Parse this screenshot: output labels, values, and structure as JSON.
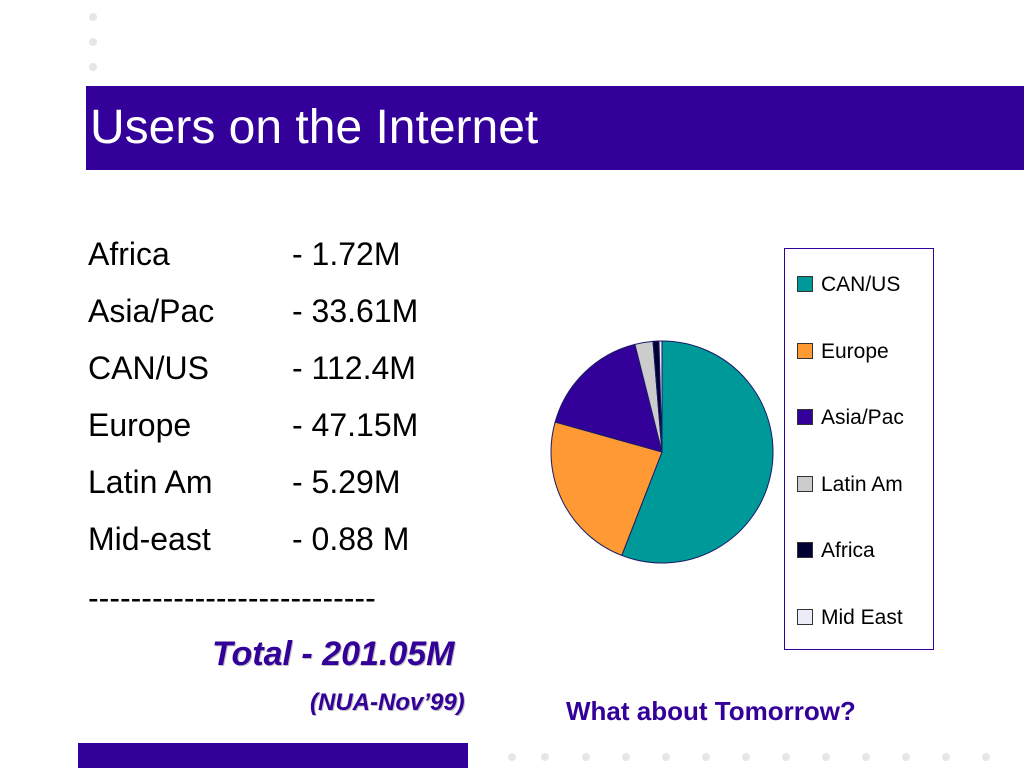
{
  "slide": {
    "title": "Users on the Internet",
    "rows": [
      {
        "name": "Africa",
        "value": "- 1.72M"
      },
      {
        "name": "Asia/Pac",
        "value": "- 33.61M"
      },
      {
        "name": "CAN/US",
        "value": "- 112.4M"
      },
      {
        "name": "Europe",
        "value": "- 47.15M"
      },
      {
        "name": "Latin Am",
        "value": "- 5.29M"
      },
      {
        "name": "Mid-east",
        "value": "- 0.88 M"
      }
    ],
    "divider": "---------------------------",
    "total": "Total - 201.05M",
    "source": "(NUA-Nov’99)",
    "question": "What about Tomorrow?"
  },
  "colors": {
    "accent": "#330099",
    "dots": "#e6e6e6"
  },
  "chart_data": {
    "type": "pie",
    "categories": [
      "CAN/US",
      "Europe",
      "Asia/Pac",
      "Latin Am",
      "Africa",
      "Mid East"
    ],
    "values": [
      112.4,
      47.15,
      33.61,
      5.29,
      1.72,
      0.88
    ],
    "colors": [
      "#009999",
      "#ff9933",
      "#330099",
      "#cccccc",
      "#000033",
      "#ececf8"
    ],
    "legend_position": "right"
  }
}
